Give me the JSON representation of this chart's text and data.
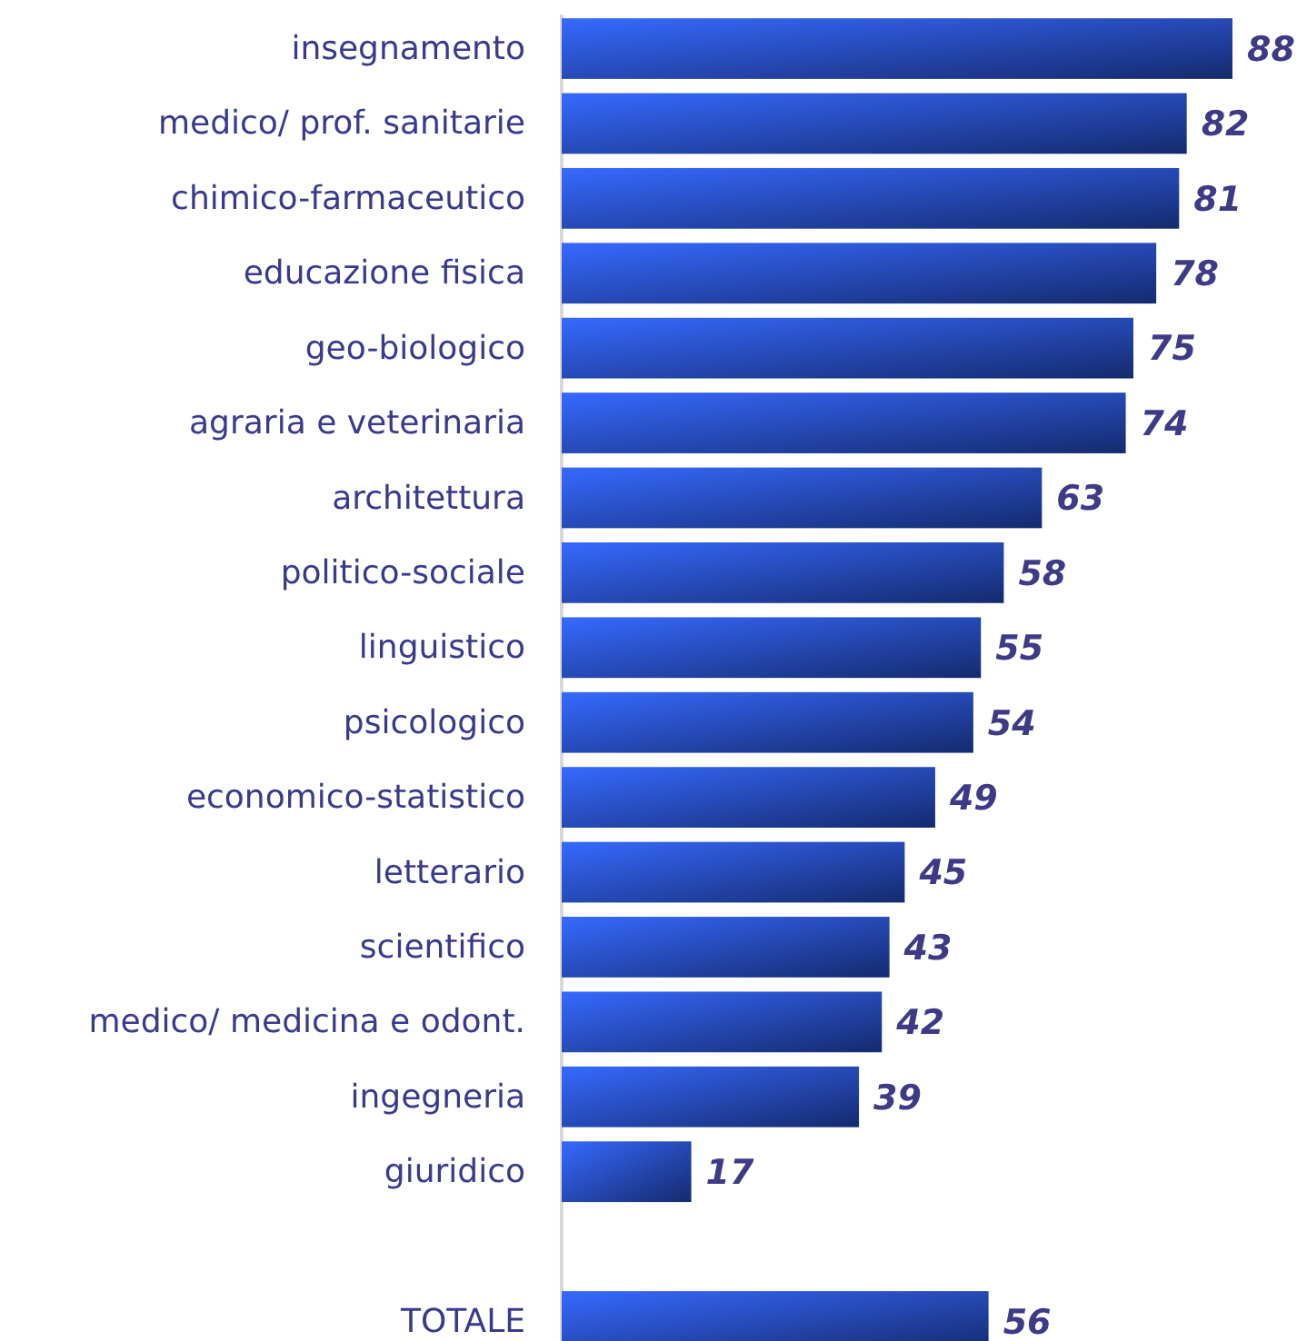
{
  "chart_data": {
    "type": "bar",
    "orientation": "horizontal",
    "data_labels": true,
    "color": "#2f5bf0",
    "categories": [
      "insegnamento",
      "medico/ prof. sanitarie",
      "chimico-farmaceutico",
      "educazione fisica",
      "geo-biologico",
      "agraria e veterinaria",
      "architettura",
      "politico-sociale",
      "linguistico",
      "psicologico",
      "economico-statistico",
      "letterario",
      "scientifico",
      "medico/ medicina e odont.",
      "ingegneria",
      "giuridico",
      null,
      "TOTALE"
    ],
    "values": [
      88,
      82,
      81,
      78,
      75,
      74,
      63,
      58,
      55,
      54,
      49,
      45,
      43,
      42,
      39,
      17,
      null,
      56
    ]
  }
}
